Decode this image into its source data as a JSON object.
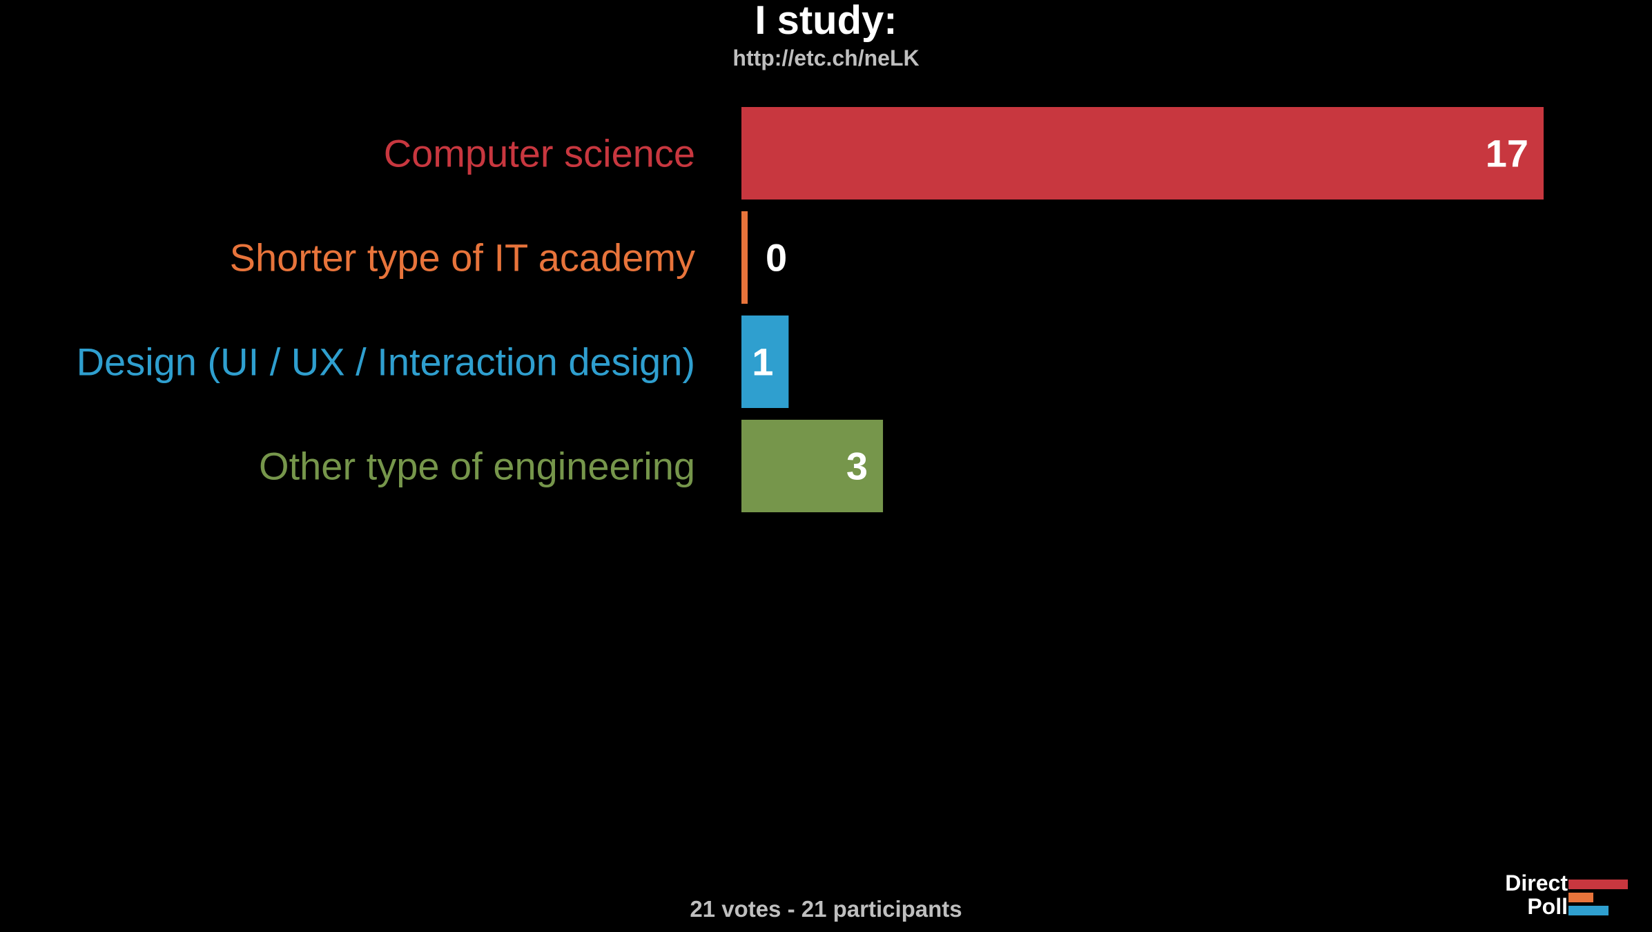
{
  "header": {
    "title": "I study:",
    "url": "http://etc.ch/neLK"
  },
  "footer": {
    "summary": "21 votes - 21 participants"
  },
  "logo": {
    "line1": "Direct",
    "line2": "Poll",
    "colors": [
      "#c8373f",
      "#e8743b",
      "#2f9fcf"
    ]
  },
  "chart_data": {
    "type": "bar",
    "orientation": "horizontal",
    "categories": [
      "Computer science",
      "Shorter type of IT academy",
      "Design (UI / UX / Interaction design)",
      "Other type of engineering"
    ],
    "values": [
      17,
      0,
      1,
      3
    ],
    "colors": [
      "#c8373f",
      "#e8743b",
      "#2f9fcf",
      "#76964b"
    ],
    "xlim": [
      0,
      17
    ],
    "grid": false,
    "legend": "none",
    "title": "I study:"
  }
}
